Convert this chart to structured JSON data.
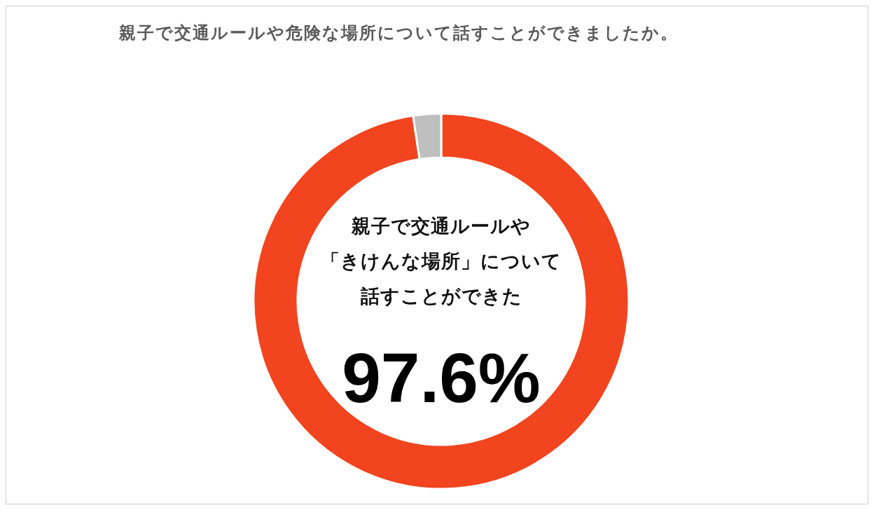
{
  "chart_data": {
    "type": "donut",
    "title": "親子で交通ルールや危険な場所について話すことができましたか。",
    "categories": [
      "親子で交通ルールや「きけんな場所」について話すことができた",
      null
    ],
    "values": [
      97.6,
      2.4
    ],
    "colors": [
      "#f2441e",
      "#bfbfbf"
    ],
    "value_labels": [
      "97.6%",
      null
    ]
  }
}
